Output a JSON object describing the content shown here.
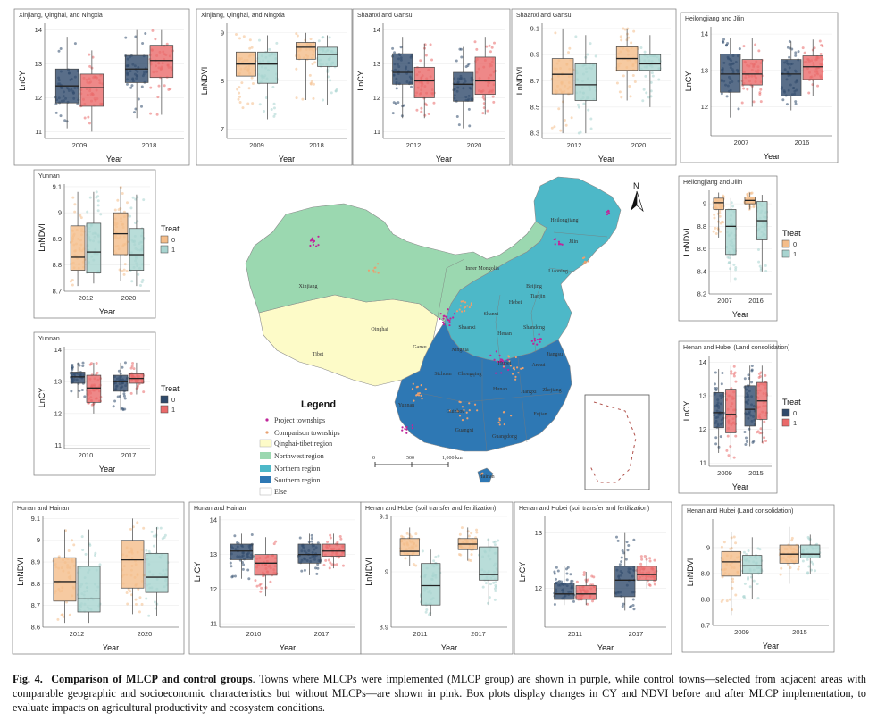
{
  "figure": {
    "label": "Fig. 4.",
    "title": "Comparison of MLCP and control groups",
    "caption": "Towns where MLCPs were implemented (MLCP group) are shown in purple, while control towns—selected from adjacent areas with comparable geographic and socioeconomic characteristics but without MLCPs—are shown in pink. Box plots display changes in CY and NDVI before and after MLCP implementation, to evaluate impacts on agricultural productivity and ecosystem conditions."
  },
  "colors": {
    "cy_control": "#2f4a6b",
    "cy_treat": "#ea6a6a",
    "ndvi_control": "#f4bd8a",
    "ndvi_treat": "#a8d4d0",
    "qinghai_tibet": "#fdfbc8",
    "northwest": "#9bd8b0",
    "northern": "#4db8c8",
    "southern": "#2e78b4",
    "project_dot": "#c0259a",
    "comparison_dot": "#e8a070"
  },
  "treat_legend": {
    "title": "Treat",
    "labels": [
      "0",
      "1"
    ]
  },
  "chart_data": [
    {
      "id": "p1",
      "type": "box",
      "title": "Xinjiang, Qinghai, and Ningxia",
      "variable": "cy",
      "xlabel": "Year",
      "ylabel": "LnCY",
      "categories": [
        "2009",
        "2018"
      ],
      "ylim": [
        10.8,
        14.2
      ],
      "yticks": [
        11,
        12,
        13,
        14
      ],
      "series": [
        {
          "name": "0",
          "boxes": [
            [
              11.1,
              11.85,
              12.35,
              12.85,
              13.8
            ],
            [
              11.4,
              12.45,
              12.85,
              13.25,
              14.0
            ]
          ]
        },
        {
          "name": "1",
          "boxes": [
            [
              11.0,
              11.75,
              12.3,
              12.7,
              13.4
            ],
            [
              11.5,
              12.6,
              13.1,
              13.55,
              14.0
            ]
          ]
        }
      ]
    },
    {
      "id": "p2",
      "type": "box",
      "title": "Xinjiang, Qinghai, and Ningxia",
      "variable": "ndvi",
      "xlabel": "Year",
      "ylabel": "LnNDVI",
      "categories": [
        "2009",
        "2018"
      ],
      "ylim": [
        6.8,
        9.2
      ],
      "yticks": [
        7,
        8,
        9
      ],
      "series": [
        {
          "name": "0",
          "boxes": [
            [
              7.4,
              8.1,
              8.35,
              8.6,
              9.0
            ],
            [
              7.6,
              8.45,
              8.7,
              8.8,
              9.0
            ]
          ]
        },
        {
          "name": "1",
          "boxes": [
            [
              7.2,
              7.95,
              8.35,
              8.6,
              8.95
            ],
            [
              7.5,
              8.3,
              8.55,
              8.7,
              8.95
            ]
          ]
        }
      ]
    },
    {
      "id": "p3",
      "type": "box",
      "title": "Shaanxi and Gansu",
      "variable": "cy",
      "xlabel": "Year",
      "ylabel": "LnCY",
      "categories": [
        "2012",
        "2020"
      ],
      "ylim": [
        10.8,
        14.2
      ],
      "yticks": [
        11,
        12,
        13,
        14
      ],
      "series": [
        {
          "name": "0",
          "boxes": [
            [
              11.4,
              12.4,
              12.75,
              13.3,
              13.8
            ],
            [
              11.1,
              11.9,
              12.4,
              12.75,
              13.5
            ]
          ]
        },
        {
          "name": "1",
          "boxes": [
            [
              11.4,
              12.0,
              12.5,
              12.9,
              13.6
            ],
            [
              11.5,
              12.1,
              12.5,
              13.2,
              13.8
            ]
          ]
        }
      ]
    },
    {
      "id": "p4",
      "type": "box",
      "title": "Shaanxi and Gansu",
      "variable": "ndvi",
      "xlabel": "Year",
      "ylabel": "LnNDVI",
      "categories": [
        "2012",
        "2020"
      ],
      "ylim": [
        8.26,
        9.14
      ],
      "yticks": [
        8.3,
        8.5,
        8.7,
        8.9,
        9.1
      ],
      "series": [
        {
          "name": "0",
          "boxes": [
            [
              8.3,
              8.6,
              8.75,
              8.87,
              9.1
            ],
            [
              8.55,
              8.78,
              8.87,
              8.96,
              9.1
            ]
          ]
        },
        {
          "name": "1",
          "boxes": [
            [
              8.3,
              8.55,
              8.67,
              8.83,
              9.05
            ],
            [
              8.5,
              8.78,
              8.83,
              8.9,
              9.05
            ]
          ]
        }
      ]
    },
    {
      "id": "p5",
      "type": "box",
      "title": "Heilongjiang and Jilin",
      "variable": "cy",
      "xlabel": "Year",
      "ylabel": "LnCY",
      "categories": [
        "2007",
        "2016"
      ],
      "ylim": [
        11.2,
        14.2
      ],
      "yticks": [
        12,
        13,
        14
      ],
      "series": [
        {
          "name": "0",
          "boxes": [
            [
              11.7,
              12.4,
              12.9,
              13.45,
              13.9
            ],
            [
              11.9,
              12.3,
              12.9,
              13.3,
              13.8
            ]
          ]
        },
        {
          "name": "1",
          "boxes": [
            [
              12.0,
              12.6,
              12.9,
              13.3,
              13.9
            ],
            [
              12.3,
              12.75,
              13.1,
              13.4,
              13.85
            ]
          ]
        }
      ]
    },
    {
      "id": "p6",
      "type": "box",
      "title": "Yunnan",
      "variable": "ndvi",
      "xlabel": "Year",
      "ylabel": "LnNDVI",
      "categories": [
        "2012",
        "2020"
      ],
      "ylim": [
        8.7,
        9.11
      ],
      "yticks": [
        8.7,
        8.8,
        8.9,
        9.0,
        9.1
      ],
      "series": [
        {
          "name": "0",
          "boxes": [
            [
              8.72,
              8.78,
              8.83,
              8.95,
              9.08
            ],
            [
              8.74,
              8.84,
              8.92,
              9.0,
              9.1
            ]
          ]
        },
        {
          "name": "1",
          "boxes": [
            [
              8.73,
              8.77,
              8.85,
              8.96,
              9.08
            ],
            [
              8.72,
              8.78,
              8.84,
              8.94,
              9.07
            ]
          ]
        }
      ]
    },
    {
      "id": "p7",
      "type": "box",
      "title": "Heilongjiang and Jilin",
      "variable": "ndvi",
      "xlabel": "Year",
      "ylabel": "LnNDVI",
      "categories": [
        "2007",
        "2016"
      ],
      "ylim": [
        8.2,
        9.12
      ],
      "yticks": [
        8.2,
        8.4,
        8.6,
        8.8,
        9.0
      ],
      "series": [
        {
          "name": "0",
          "boxes": [
            [
              8.7,
              8.95,
              9.01,
              9.05,
              9.1
            ],
            [
              8.95,
              9.0,
              9.03,
              9.06,
              9.1
            ]
          ]
        },
        {
          "name": "1",
          "boxes": [
            [
              8.3,
              8.55,
              8.8,
              8.95,
              9.05
            ],
            [
              8.4,
              8.68,
              8.85,
              9.02,
              9.08
            ]
          ]
        }
      ]
    },
    {
      "id": "p8",
      "type": "box",
      "title": "Yunnan",
      "variable": "cy",
      "xlabel": "Year",
      "ylabel": "LnCY",
      "categories": [
        "2010",
        "2017"
      ],
      "ylim": [
        10.9,
        14.1
      ],
      "yticks": [
        11,
        12,
        13,
        14
      ],
      "series": [
        {
          "name": "0",
          "boxes": [
            [
              12.5,
              12.95,
              13.15,
              13.3,
              13.6
            ],
            [
              12.1,
              12.7,
              13.0,
              13.2,
              13.6
            ]
          ]
        },
        {
          "name": "1",
          "boxes": [
            [
              12.0,
              12.35,
              12.8,
              13.2,
              13.6
            ],
            [
              12.6,
              12.95,
              13.1,
              13.25,
              13.6
            ]
          ]
        }
      ]
    },
    {
      "id": "p9",
      "type": "box",
      "title": "Henan and Hubei (Land consolidation)",
      "variable": "cy",
      "xlabel": "Year",
      "ylabel": "LnCY",
      "categories": [
        "2009",
        "2015"
      ],
      "ylim": [
        10.9,
        14.2
      ],
      "yticks": [
        11,
        12,
        13,
        14
      ],
      "series": [
        {
          "name": "0",
          "boxes": [
            [
              11.3,
              12.05,
              12.5,
              13.1,
              13.8
            ],
            [
              11.5,
              12.1,
              12.6,
              13.3,
              13.9
            ]
          ]
        },
        {
          "name": "1",
          "boxes": [
            [
              11.1,
              11.9,
              12.45,
              13.2,
              13.9
            ],
            [
              11.6,
              12.3,
              12.85,
              13.4,
              13.9
            ]
          ]
        }
      ]
    },
    {
      "id": "p10",
      "type": "box",
      "title": "Hunan and Hainan",
      "variable": "ndvi",
      "xlabel": "Year",
      "ylabel": "LnNDVI",
      "categories": [
        "2012",
        "2020"
      ],
      "ylim": [
        8.6,
        9.11
      ],
      "yticks": [
        8.6,
        8.7,
        8.8,
        8.9,
        9.0,
        9.1
      ],
      "series": [
        {
          "name": "0",
          "boxes": [
            [
              8.62,
              8.72,
              8.81,
              8.92,
              9.05
            ],
            [
              8.66,
              8.78,
              8.91,
              9.0,
              9.1
            ]
          ]
        },
        {
          "name": "1",
          "boxes": [
            [
              8.62,
              8.67,
              8.73,
              8.88,
              9.05
            ],
            [
              8.65,
              8.76,
              8.83,
              8.94,
              9.06
            ]
          ]
        }
      ]
    },
    {
      "id": "p11",
      "type": "box",
      "title": "Hunan and Hainan",
      "variable": "cy",
      "xlabel": "Year",
      "ylabel": "LnCY",
      "categories": [
        "2010",
        "2017"
      ],
      "ylim": [
        10.9,
        14.1
      ],
      "yticks": [
        11,
        12,
        13,
        14
      ],
      "series": [
        {
          "name": "0",
          "boxes": [
            [
              12.3,
              12.85,
              13.1,
              13.3,
              13.6
            ],
            [
              12.4,
              12.75,
              13.0,
              13.3,
              13.6
            ]
          ]
        },
        {
          "name": "1",
          "boxes": [
            [
              11.8,
              12.4,
              12.75,
              13.0,
              13.5
            ],
            [
              12.6,
              12.95,
              13.1,
              13.3,
              13.6
            ]
          ]
        }
      ]
    },
    {
      "id": "p12",
      "type": "box",
      "title": "Henan and Hubei (soil transfer and fertilization)",
      "variable": "ndvi",
      "xlabel": "Year",
      "ylabel": "LnNDVI",
      "categories": [
        "2011",
        "2017"
      ],
      "ylim": [
        8.9,
        9.1
      ],
      "yticks": [
        8.9,
        9.0,
        9.1
      ],
      "series": [
        {
          "name": "0",
          "boxes": [
            [
              9.01,
              9.03,
              9.037,
              9.06,
              9.08
            ],
            [
              9.02,
              9.04,
              9.05,
              9.06,
              9.08
            ]
          ]
        },
        {
          "name": "1",
          "boxes": [
            [
              8.92,
              8.94,
              8.975,
              9.015,
              9.04
            ],
            [
              8.94,
              8.985,
              8.995,
              9.045,
              9.06
            ]
          ]
        }
      ]
    },
    {
      "id": "p13",
      "type": "box",
      "title": "Henan and Hubei (soil transfer and fertilization)",
      "variable": "cy",
      "xlabel": "Year",
      "ylabel": "LnCY",
      "categories": [
        "2011",
        "2017"
      ],
      "ylim": [
        11.3,
        13.3
      ],
      "yticks": [
        12,
        13
      ],
      "series": [
        {
          "name": "0",
          "boxes": [
            [
              11.7,
              11.8,
              11.9,
              12.1,
              12.4
            ],
            [
              11.6,
              11.85,
              12.15,
              12.4,
              13.0
            ]
          ]
        },
        {
          "name": "1",
          "boxes": [
            [
              11.7,
              11.8,
              11.9,
              12.05,
              12.3
            ],
            [
              12.0,
              12.15,
              12.25,
              12.4,
              12.6
            ]
          ]
        }
      ]
    },
    {
      "id": "p14",
      "type": "box",
      "title": "Henan and Hubei (Land consolidation)",
      "variable": "ndvi",
      "xlabel": "Year",
      "ylabel": "LnNDVI",
      "categories": [
        "2009",
        "2015"
      ],
      "ylim": [
        8.7,
        9.11
      ],
      "yticks": [
        8.7,
        8.8,
        8.9,
        9.0
      ],
      "series": [
        {
          "name": "0",
          "boxes": [
            [
              8.74,
              8.89,
              8.945,
              8.985,
              9.06
            ],
            [
              8.86,
              8.94,
              8.975,
              9.01,
              9.08
            ]
          ]
        },
        {
          "name": "1",
          "boxes": [
            [
              8.8,
              8.9,
              8.93,
              8.97,
              9.04
            ],
            [
              8.9,
              8.96,
              8.975,
              9.01,
              9.05
            ]
          ]
        }
      ]
    }
  ],
  "map": {
    "legend_title": "Legend",
    "legend_items": [
      "Project townships",
      "Comparison townships",
      "Qinghai-tibet region",
      "Northwest region",
      "Northern region",
      "Southern region",
      "Else"
    ],
    "north_label": "N",
    "scale_ticks": [
      "0",
      "500",
      "1,000 km"
    ],
    "province_labels": [
      "Xinjiang",
      "Tibet",
      "Qinghai",
      "Inner Mongolia",
      "Heilongjiang",
      "Jilin",
      "Liaoning",
      "Hebei",
      "Beijing",
      "Tianjin",
      "Shanxi",
      "Shaanxi",
      "Shandong",
      "Henan",
      "Hubei",
      "Anhui",
      "Jiangsu",
      "Sichuan",
      "Chongqing",
      "Hunan",
      "Jiangxi",
      "Zhejiang",
      "Guizhou",
      "Yunnan",
      "Guangxi",
      "Guangdong",
      "Fujian",
      "Gansu",
      "Ningxia",
      "Hainan"
    ]
  }
}
